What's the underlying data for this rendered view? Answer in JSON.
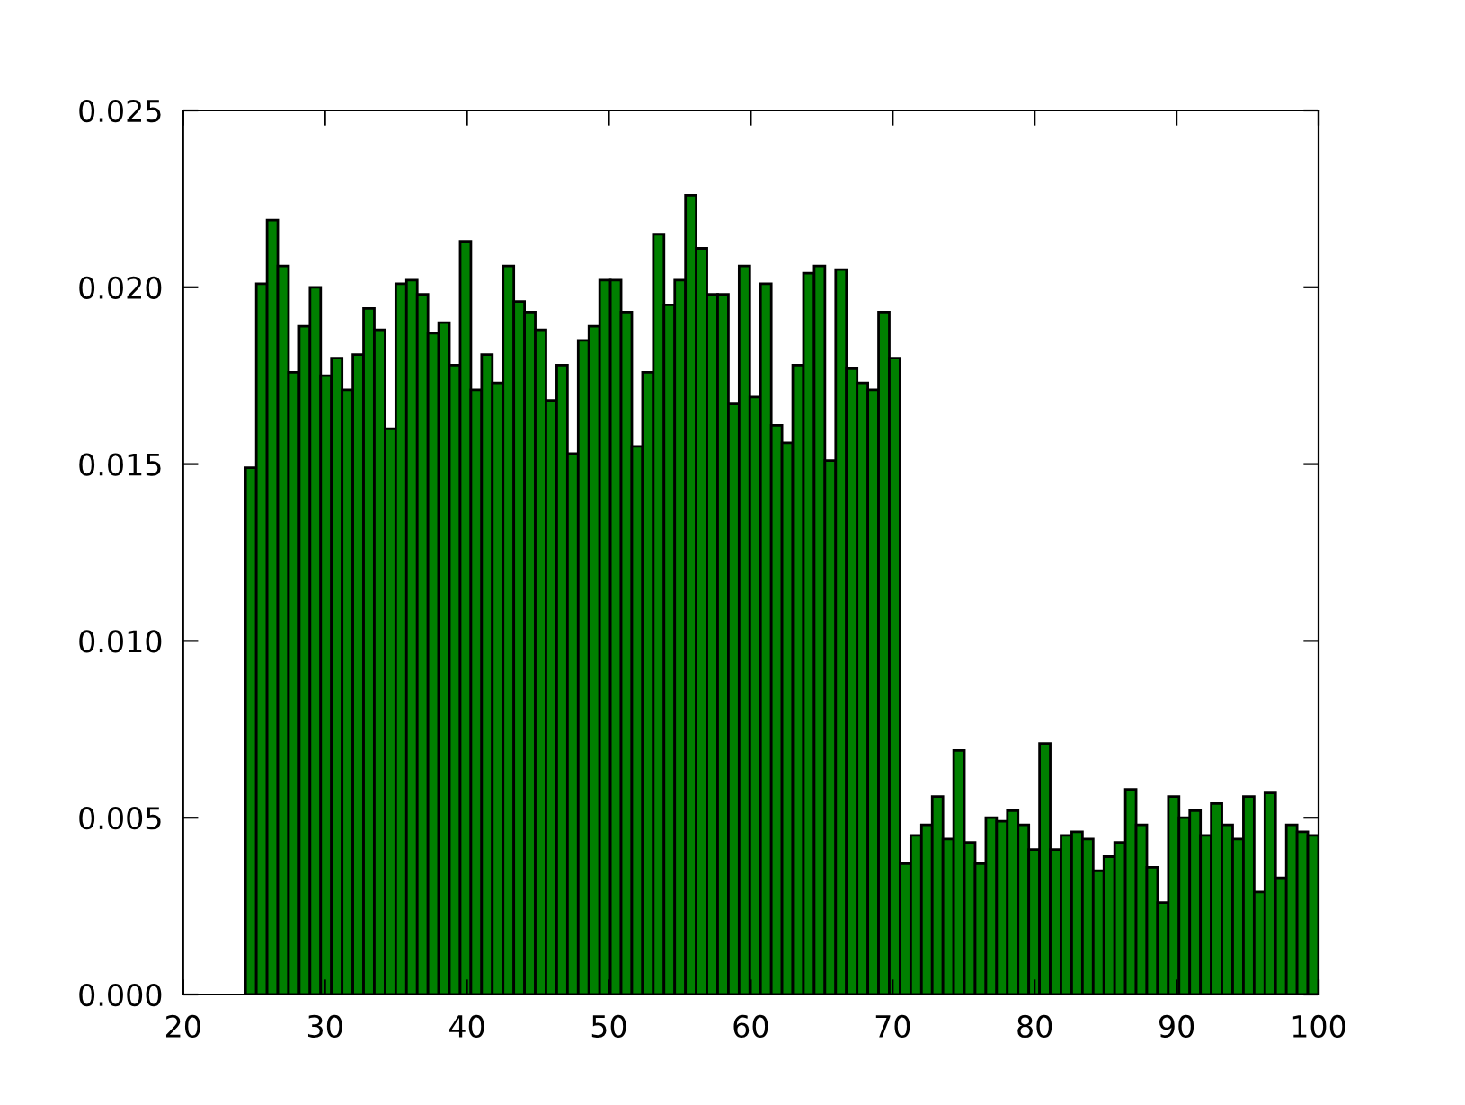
{
  "chart_data": {
    "type": "histogram",
    "bins": [
      24.4,
      25.156,
      25.912,
      26.668,
      27.424,
      28.18,
      28.936,
      29.692,
      30.448,
      31.204,
      31.96,
      32.716,
      33.472,
      34.228,
      34.984,
      35.74,
      36.496,
      37.252,
      38.008,
      38.764,
      39.52,
      40.276,
      41.032,
      41.788,
      42.544,
      43.3,
      44.056,
      44.812,
      45.568,
      46.324,
      47.08,
      47.836,
      48.592,
      49.348,
      50.104,
      50.86,
      51.616,
      52.372,
      53.128,
      53.884,
      54.64,
      55.396,
      56.152,
      56.908,
      57.664,
      58.42,
      59.176,
      59.932,
      60.688,
      61.444,
      62.2,
      62.956,
      63.712,
      64.468,
      65.224,
      65.98,
      66.736,
      67.492,
      68.248,
      69.004,
      69.76,
      70.516,
      71.272,
      72.028,
      72.784,
      73.54,
      74.296,
      75.052,
      75.808,
      76.564,
      77.32,
      78.076,
      78.832,
      79.588,
      80.344,
      81.1,
      81.856,
      82.612,
      83.368,
      84.124,
      84.88,
      85.636,
      86.392,
      87.148,
      87.904,
      88.66,
      89.416,
      90.172,
      90.928,
      91.684,
      92.44,
      93.196,
      93.952,
      94.708,
      95.464,
      96.22,
      96.976,
      97.732,
      98.488,
      99.244,
      100
    ],
    "values": [
      0.0149,
      0.0201,
      0.0219,
      0.0206,
      0.0176,
      0.0189,
      0.02,
      0.0175,
      0.018,
      0.0171,
      0.0181,
      0.0194,
      0.0188,
      0.016,
      0.0201,
      0.0202,
      0.0198,
      0.0187,
      0.019,
      0.0178,
      0.0213,
      0.0171,
      0.0181,
      0.0173,
      0.0206,
      0.0196,
      0.0193,
      0.0188,
      0.0168,
      0.0178,
      0.0153,
      0.0185,
      0.0189,
      0.0202,
      0.0202,
      0.0193,
      0.0155,
      0.0176,
      0.0215,
      0.0195,
      0.0202,
      0.0226,
      0.0211,
      0.0198,
      0.0198,
      0.0167,
      0.0206,
      0.0169,
      0.0201,
      0.0161,
      0.0156,
      0.0178,
      0.0204,
      0.0206,
      0.0151,
      0.0205,
      0.0177,
      0.0173,
      0.0171,
      0.0193,
      0.018,
      0.0037,
      0.0045,
      0.0048,
      0.0056,
      0.0044,
      0.0069,
      0.0043,
      0.0037,
      0.005,
      0.0049,
      0.0052,
      0.0048,
      0.0041,
      0.0071,
      0.0041,
      0.0045,
      0.0046,
      0.0044,
      0.0035,
      0.0039,
      0.0043,
      0.0058,
      0.0048,
      0.0036,
      0.0026,
      0.0056,
      0.005,
      0.0052,
      0.0045,
      0.0054,
      0.0048,
      0.0044,
      0.0056,
      0.0029,
      0.0057,
      0.0033,
      0.0048,
      0.0046,
      0.0045
    ],
    "color": "#008000",
    "xlim": [
      20,
      100
    ],
    "xticks": [
      20,
      30,
      40,
      50,
      60,
      70,
      80,
      90,
      100
    ],
    "ylim": [
      0,
      0.025
    ],
    "yticks": [
      {
        "value": 0,
        "label": "0.000"
      },
      {
        "value": 0.005,
        "label": "0.005"
      },
      {
        "value": 0.01,
        "label": "0.010"
      },
      {
        "value": 0.015,
        "label": "0.015"
      },
      {
        "value": 0.02,
        "label": "0.020"
      },
      {
        "value": 0.025,
        "label": "0.025"
      }
    ],
    "grid": false
  }
}
